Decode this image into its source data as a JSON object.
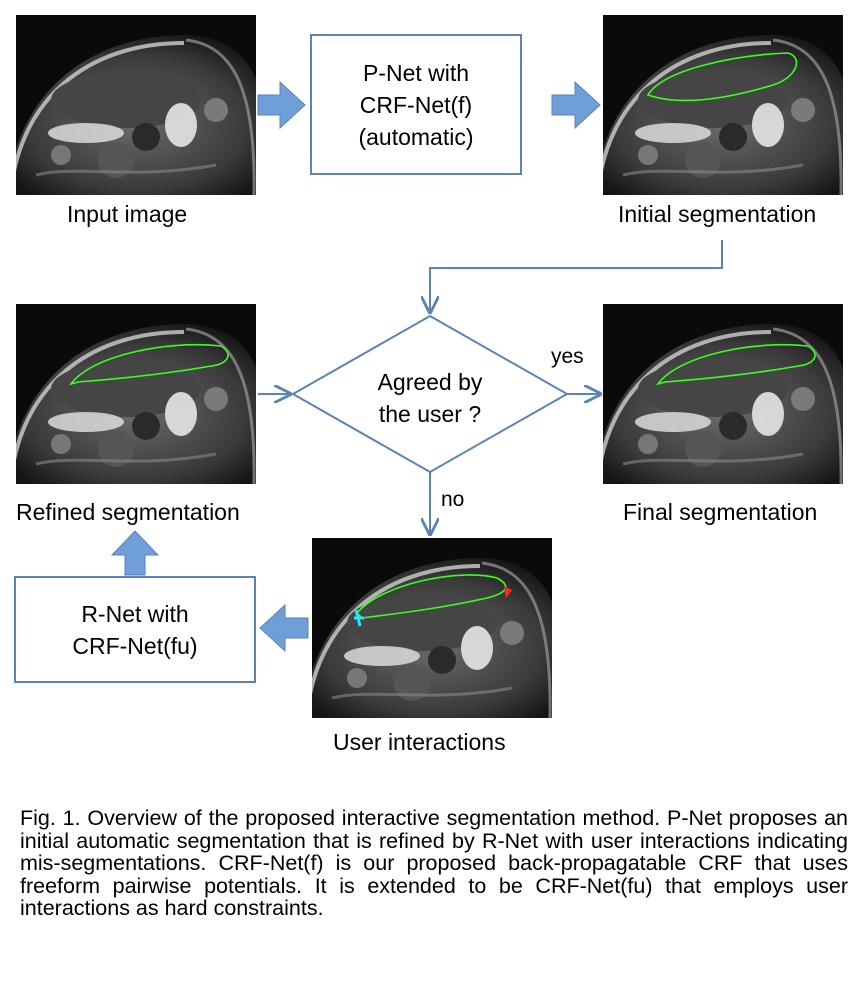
{
  "nodes": {
    "input_image": {
      "caption": "Input image"
    },
    "initial_segmentation": {
      "caption": "Initial segmentation"
    },
    "refined_segmentation": {
      "caption": "Refined segmentation"
    },
    "final_segmentation": {
      "caption": "Final segmentation"
    },
    "user_interactions": {
      "caption": "User interactions"
    },
    "pnet_box": {
      "line1": "P-Net with",
      "line2": "CRF-Net(f)",
      "line3": "(automatic)"
    },
    "rnet_box": {
      "line1": "R-Net with",
      "line2": "CRF-Net(fu)"
    },
    "decision": {
      "line1": "Agreed by",
      "line2": "the user ?",
      "yes_label": "yes",
      "no_label": "no"
    }
  },
  "colors": {
    "box_border": "#5b83b6",
    "arrow_fill": "#6f9fd8",
    "segmentation": "#39ff1f",
    "interaction_red": "#ff2a1a",
    "interaction_cyan": "#22e5ff"
  },
  "figure_caption": "Fig. 1. Overview of the proposed interactive segmentation method. P-Net proposes an initial automatic segmentation that is refined by R-Net with user interactions indicating mis-segmentations. CRF-Net(f) is our proposed back-propagatable CRF that uses freeform pairwise potentials. It is extended to be CRF-Net(fu) that employs user interactions as hard constraints."
}
